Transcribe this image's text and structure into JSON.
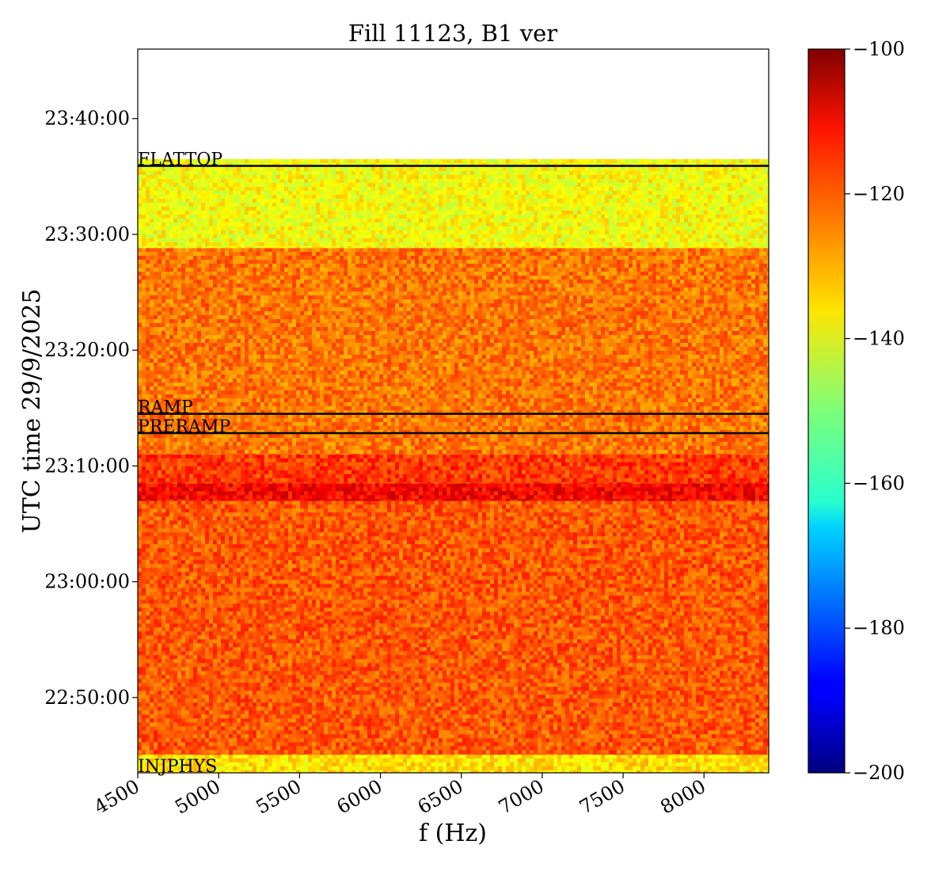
{
  "chart_data": {
    "type": "heatmap",
    "title": "Fill 11123, B1 ver",
    "xlabel": "f (Hz)",
    "ylabel": "UTC time 29/9/2025",
    "x_ticks": [
      "4500",
      "5000",
      "5500",
      "6000",
      "6500",
      "7000",
      "7500",
      "8000"
    ],
    "x_tick_values": [
      4500,
      5000,
      5500,
      6000,
      6500,
      7000,
      7500,
      8000
    ],
    "xlim": [
      4500,
      8400
    ],
    "y_ticks": [
      "22:50:00",
      "23:00:00",
      "23:10:00",
      "23:20:00",
      "23:30:00",
      "23:40:00"
    ],
    "y_tick_values": [
      "22:50:00",
      "23:00:00",
      "23:10:00",
      "23:20:00",
      "23:30:00",
      "23:40:00"
    ],
    "ylim": [
      "22:43:30",
      "23:46:00"
    ],
    "colorbar": {
      "colormap": "jet",
      "range": [
        -200,
        -100
      ],
      "ticks": [
        "−100",
        "−120",
        "−140",
        "−160",
        "−180",
        "−200"
      ],
      "tick_values": [
        -100,
        -120,
        -140,
        -160,
        -180,
        -200
      ]
    },
    "phase_markers": [
      {
        "label": "FLATTOP",
        "time": "23:35:55"
      },
      {
        "label": "RAMP",
        "time": "23:14:30"
      },
      {
        "label": "PRERAMP",
        "time": "23:12:50"
      },
      {
        "label": "INJPHYS",
        "time": "22:43:30"
      }
    ],
    "data_bands": [
      {
        "from": "22:43:30",
        "to": "22:45:05",
        "level": -135
      },
      {
        "from": "22:45:05",
        "to": "23:07:00",
        "level": -121
      },
      {
        "from": "23:07:00",
        "to": "23:08:30",
        "level": -112
      },
      {
        "from": "23:08:30",
        "to": "23:11:00",
        "level": -118
      },
      {
        "from": "23:11:00",
        "to": "23:28:50",
        "level": -124
      },
      {
        "from": "23:28:50",
        "to": "23:36:30",
        "level": -138
      }
    ],
    "no_data_above": "23:36:30"
  }
}
